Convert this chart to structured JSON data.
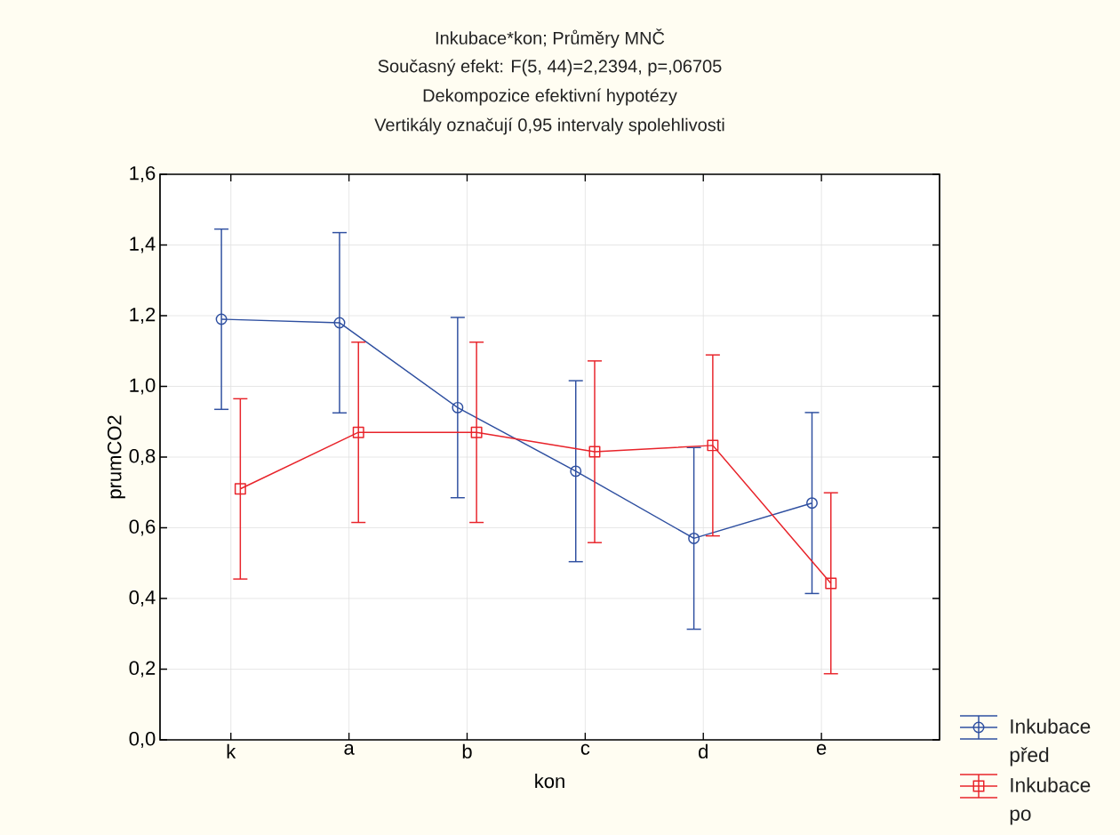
{
  "chart_data": {
    "type": "line",
    "title": "Inkubace*kon; Průměry MNČ",
    "subtitle": "Současný efekt: F(5, 44)=2,2394, p=,06705",
    "annotations": [
      "Dekompozice efektivní hypotézy",
      "Vertikály označují 0,95 intervaly spolehlivosti"
    ],
    "xlabel": "kon",
    "ylabel": "prumCO2",
    "categories": [
      "k",
      "a",
      "b",
      "c",
      "d",
      "e"
    ],
    "series": [
      {
        "name": "Inkubace před",
        "color": "#2e4fa0",
        "marker": "circle",
        "values": [
          1.19,
          1.18,
          0.94,
          0.76,
          0.57,
          0.67
        ],
        "errors": [
          0.255,
          0.255,
          0.255,
          0.256,
          0.257,
          0.256
        ]
      },
      {
        "name": "Inkubace po",
        "color": "#e8232a",
        "marker": "square",
        "values": [
          0.71,
          0.87,
          0.87,
          0.815,
          0.833,
          0.443
        ],
        "errors": [
          0.255,
          0.255,
          0.255,
          0.257,
          0.256,
          0.256
        ]
      }
    ],
    "ylim": [
      0,
      1.6
    ],
    "yticks": [
      {
        "value": 0,
        "label": "0,0"
      },
      {
        "value": 0.2,
        "label": "0,2"
      },
      {
        "value": 0.4,
        "label": "0,4"
      },
      {
        "value": 0.6,
        "label": "0,6"
      },
      {
        "value": 0.8,
        "label": "0,8"
      },
      {
        "value": 1.0,
        "label": "1,0"
      },
      {
        "value": 1.2,
        "label": "1,2"
      },
      {
        "value": 1.4,
        "label": "1,4"
      },
      {
        "value": 1.6,
        "label": "1,6"
      }
    ],
    "grid": true,
    "legend": "bottom right",
    "line_style": "solid"
  }
}
